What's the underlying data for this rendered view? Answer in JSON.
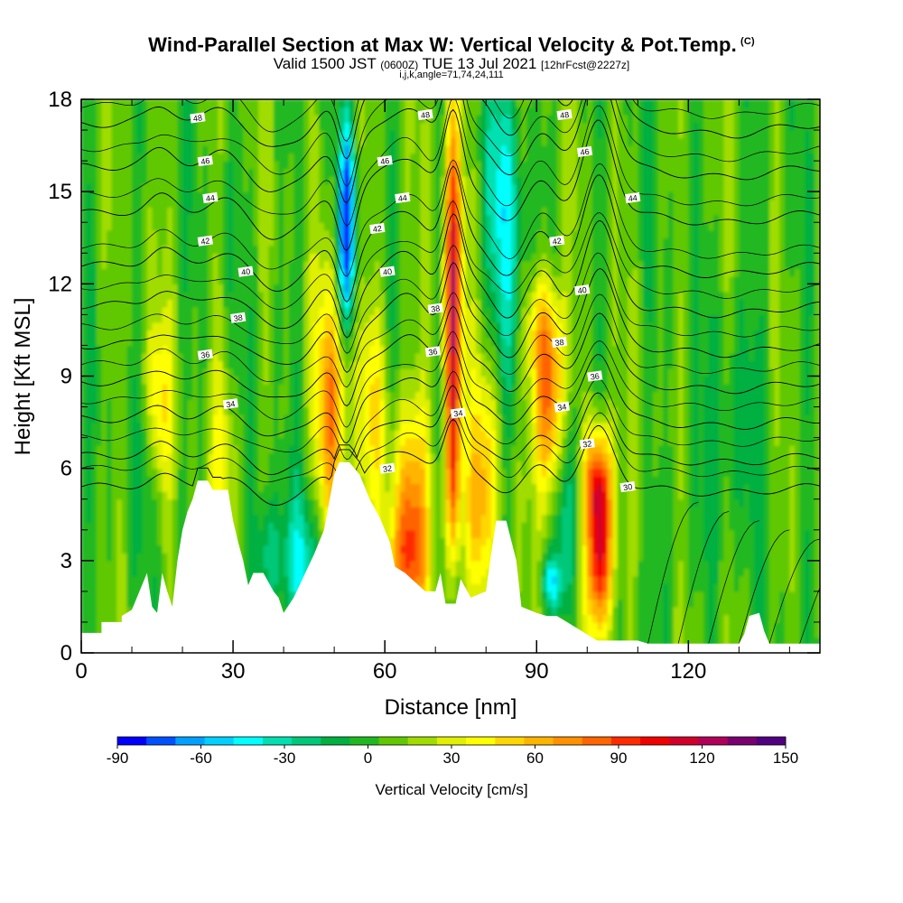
{
  "header": {
    "title": "Wind-Parallel Section at Max W: Vertical Velocity & Pot.Temp.",
    "title_mark": "(C)",
    "valid_prefix": "Valid 1500 JST",
    "valid_utc": "(0600Z)",
    "valid_date": "TUE 13 Jul 2021",
    "forecast": "[12hrFcst@2227z]",
    "indices": "i,j,k,angle=71,74,24,111"
  },
  "chart_data": {
    "type": "heatmap",
    "title": "Wind-Parallel Section at Max W: Vertical Velocity & Pot.Temp.",
    "xlabel": "Distance [nm]",
    "ylabel": "Height [Kft MSL]",
    "xlim": [
      0,
      146
    ],
    "ylim": [
      0,
      18
    ],
    "x_ticks": [
      0,
      30,
      60,
      90,
      120
    ],
    "y_ticks": [
      0,
      3,
      6,
      9,
      12,
      15,
      18
    ],
    "colorbar": {
      "label": "Vertical Velocity [cm/s]",
      "ticks": [
        -90,
        -60,
        -30,
        0,
        30,
        60,
        90,
        120,
        150
      ],
      "range": [
        -90,
        150
      ],
      "colors": [
        "#0000ff",
        "#0050ff",
        "#00a0ff",
        "#00d0ff",
        "#00ffff",
        "#00e0b0",
        "#00c878",
        "#00b040",
        "#20b820",
        "#60c800",
        "#a0dc00",
        "#e0f000",
        "#ffff00",
        "#ffd700",
        "#ffb400",
        "#ff9000",
        "#ff6400",
        "#ff2a00",
        "#f00000",
        "#d0002a",
        "#b0005a",
        "#7a0070",
        "#500080"
      ]
    },
    "background_w": 5,
    "terrain": [
      [
        0,
        0.65
      ],
      [
        4,
        0.65
      ],
      [
        4,
        1
      ],
      [
        8,
        1
      ],
      [
        8,
        1.2
      ],
      [
        10,
        1.4
      ],
      [
        11,
        1.8
      ],
      [
        12,
        2.2
      ],
      [
        13,
        2.6
      ],
      [
        14,
        1.5
      ],
      [
        15,
        1.3
      ],
      [
        16,
        2.6
      ],
      [
        17,
        2
      ],
      [
        18,
        1.5
      ],
      [
        19,
        3
      ],
      [
        20,
        4
      ],
      [
        21,
        4.6
      ],
      [
        22,
        5
      ],
      [
        23,
        5.6
      ],
      [
        25,
        5.6
      ],
      [
        26,
        5.3
      ],
      [
        29,
        5.3
      ],
      [
        30,
        4.3
      ],
      [
        31,
        3.6
      ],
      [
        32,
        3
      ],
      [
        33,
        2.2
      ],
      [
        34,
        2.6
      ],
      [
        36,
        2.6
      ],
      [
        38,
        2
      ],
      [
        39,
        1.8
      ],
      [
        40,
        1.3
      ],
      [
        42,
        1.8
      ],
      [
        44,
        2.5
      ],
      [
        46,
        3.2
      ],
      [
        48,
        4
      ],
      [
        50,
        5.8
      ],
      [
        51,
        6.2
      ],
      [
        53,
        6.2
      ],
      [
        55,
        5.8
      ],
      [
        57,
        5
      ],
      [
        59,
        4.4
      ],
      [
        61,
        3.6
      ],
      [
        62,
        2.8
      ],
      [
        64,
        2.6
      ],
      [
        66,
        2.3
      ],
      [
        68,
        2
      ],
      [
        70,
        2
      ],
      [
        71,
        2.6
      ],
      [
        72,
        1.6
      ],
      [
        74,
        1.6
      ],
      [
        75,
        2.4
      ],
      [
        77,
        1.8
      ],
      [
        80,
        2
      ],
      [
        81,
        3.2
      ],
      [
        82,
        4.3
      ],
      [
        84,
        4.3
      ],
      [
        86,
        3
      ],
      [
        87,
        1.5
      ],
      [
        90,
        1.3
      ],
      [
        92,
        1.2
      ],
      [
        94,
        1.2
      ],
      [
        96,
        1
      ],
      [
        98,
        0.8
      ],
      [
        100,
        0.6
      ],
      [
        102,
        0.4
      ],
      [
        110,
        0.4
      ],
      [
        112,
        0.3
      ],
      [
        130,
        0.3
      ],
      [
        131,
        0.6
      ],
      [
        132,
        1.2
      ],
      [
        134,
        1.3
      ],
      [
        135,
        0.7
      ],
      [
        136,
        0.3
      ],
      [
        146,
        0.3
      ]
    ],
    "w_features": [
      {
        "x": 73.5,
        "y": 11.5,
        "sx": 1.2,
        "sy": 4.5,
        "w": 115
      },
      {
        "x": 73.5,
        "y": 5.5,
        "sx": 1.0,
        "sy": 2.2,
        "w": 45
      },
      {
        "x": 102.5,
        "y": 3.3,
        "sx": 1.8,
        "sy": 2.0,
        "w": 115
      },
      {
        "x": 102,
        "y": 5.8,
        "sx": 2.0,
        "sy": 1.2,
        "w": 60
      },
      {
        "x": 92.5,
        "y": 8.0,
        "sx": 2.0,
        "sy": 2.2,
        "w": 80
      },
      {
        "x": 91,
        "y": 10.5,
        "sx": 2.5,
        "sy": 1.5,
        "w": 40
      },
      {
        "x": 65,
        "y": 4.5,
        "sx": 2.6,
        "sy": 2.6,
        "w": 75
      },
      {
        "x": 64,
        "y": 2.8,
        "sx": 3.0,
        "sy": 1.2,
        "w": 30
      },
      {
        "x": 49.5,
        "y": 8.0,
        "sx": 2.2,
        "sy": 3.2,
        "w": 65
      },
      {
        "x": 57.5,
        "y": 8.2,
        "sx": 2.2,
        "sy": 2.5,
        "w": 35
      },
      {
        "x": 15,
        "y": 8.0,
        "sx": 2.0,
        "sy": 2.0,
        "w": 40
      },
      {
        "x": 28,
        "y": 6.0,
        "sx": 2.0,
        "sy": 2.5,
        "w": 25
      },
      {
        "x": 80,
        "y": 6.0,
        "sx": 2.5,
        "sy": 2.5,
        "w": 40
      },
      {
        "x": 78,
        "y": 4.0,
        "sx": 2.0,
        "sy": 2.0,
        "w": 25
      },
      {
        "x": 83.5,
        "y": 15.0,
        "sx": 2.5,
        "sy": 3.0,
        "w": -40
      },
      {
        "x": 85,
        "y": 10.0,
        "sx": 2.0,
        "sy": 3.0,
        "w": -20
      },
      {
        "x": 52.5,
        "y": 14.5,
        "sx": 1.0,
        "sy": 1.8,
        "w": -85
      },
      {
        "x": 52,
        "y": 12.0,
        "sx": 1.5,
        "sy": 1.5,
        "w": -35
      },
      {
        "x": 44,
        "y": 3.0,
        "sx": 3.0,
        "sy": 1.5,
        "w": -35
      },
      {
        "x": 37,
        "y": 3.0,
        "sx": 2.0,
        "sy": 1.5,
        "w": -30
      },
      {
        "x": 96,
        "y": 4.5,
        "sx": 1.5,
        "sy": 2.2,
        "w": -35
      },
      {
        "x": 93,
        "y": 2.3,
        "sx": 1.5,
        "sy": 0.6,
        "w": -45
      },
      {
        "x": 13,
        "y": 6.5,
        "sx": 1.5,
        "sy": 1.5,
        "w": -15
      },
      {
        "x": 130,
        "y": 8.0,
        "sx": 4,
        "sy": 3,
        "w": -15
      },
      {
        "x": 120,
        "y": 4.0,
        "sx": 4,
        "sy": 2,
        "w": -10
      }
    ],
    "theta_levels": [
      {
        "value": 30,
        "base": 5.4,
        "label_x": 108
      },
      {
        "value": 32,
        "base": 6.4,
        "label_x": 100
      },
      {
        "value": 34,
        "base": 7.6,
        "label_x": 29
      },
      {
        "value": 36,
        "base": 8.8,
        "label_x": 24
      },
      {
        "value": 38,
        "base": 10.0,
        "label_x": 31
      },
      {
        "value": 40,
        "base": 11.3,
        "label_x": 31
      },
      {
        "value": 42,
        "base": 12.6,
        "label_x": 24
      },
      {
        "value": 44,
        "base": 14.3,
        "label_x": 25
      },
      {
        "value": 46,
        "base": 15.8,
        "label_x": 24
      },
      {
        "value": 48,
        "base": 17.2,
        "label_x": 23
      }
    ],
    "theta_label_points": [
      {
        "value": 30,
        "x": 108,
        "y": 5.4
      },
      {
        "value": 32,
        "x": 100,
        "y": 6.8
      },
      {
        "value": 32,
        "x": 60.5,
        "y": 6.0
      },
      {
        "value": 34,
        "x": 29.5,
        "y": 8.1
      },
      {
        "value": 34,
        "x": 74.5,
        "y": 7.8
      },
      {
        "value": 34,
        "x": 95,
        "y": 8.0
      },
      {
        "value": 36,
        "x": 24.5,
        "y": 9.7
      },
      {
        "value": 36,
        "x": 69.5,
        "y": 9.8
      },
      {
        "value": 36,
        "x": 101.5,
        "y": 9.0
      },
      {
        "value": 38,
        "x": 31,
        "y": 10.9
      },
      {
        "value": 38,
        "x": 94.5,
        "y": 10.1
      },
      {
        "value": 38,
        "x": 70,
        "y": 11.2
      },
      {
        "value": 40,
        "x": 32.5,
        "y": 12.4
      },
      {
        "value": 40,
        "x": 60.5,
        "y": 12.4
      },
      {
        "value": 40,
        "x": 99,
        "y": 11.8
      },
      {
        "value": 42,
        "x": 24.5,
        "y": 13.4
      },
      {
        "value": 42,
        "x": 58.5,
        "y": 13.8
      },
      {
        "value": 42,
        "x": 94,
        "y": 13.4
      },
      {
        "value": 44,
        "x": 25.5,
        "y": 14.8
      },
      {
        "value": 44,
        "x": 63.5,
        "y": 14.8
      },
      {
        "value": 44,
        "x": 109,
        "y": 14.8
      },
      {
        "value": 46,
        "x": 24.5,
        "y": 16.0
      },
      {
        "value": 46,
        "x": 60,
        "y": 16.0
      },
      {
        "value": 46,
        "x": 99.5,
        "y": 16.3
      },
      {
        "value": 48,
        "x": 23,
        "y": 17.4
      },
      {
        "value": 48,
        "x": 68,
        "y": 17.5
      },
      {
        "value": 48,
        "x": 95.5,
        "y": 17.5
      }
    ]
  }
}
